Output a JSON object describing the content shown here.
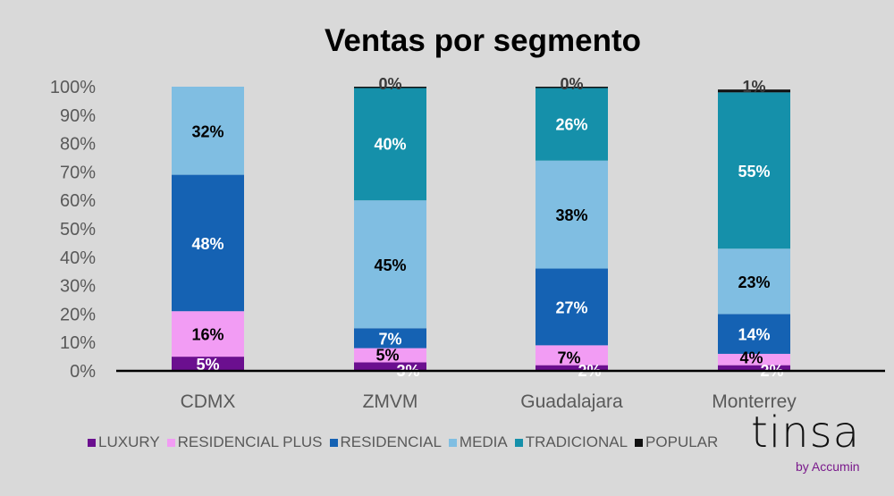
{
  "chart_data": {
    "type": "bar",
    "stacked": true,
    "title": "Ventas por segmento",
    "xlabel": "",
    "ylabel": "",
    "ylim": [
      0,
      100
    ],
    "yticks": [
      "0%",
      "10%",
      "20%",
      "30%",
      "40%",
      "50%",
      "60%",
      "70%",
      "80%",
      "90%",
      "100%"
    ],
    "categories": [
      "CDMX",
      "ZMVM",
      "Guadalajara",
      "Monterrey"
    ],
    "series": [
      {
        "name": "LUXURY",
        "color": "#6b0f8f",
        "label_color": "#ffffff",
        "values": [
          5,
          3,
          2,
          2
        ]
      },
      {
        "name": "RESIDENCIAL PLUS",
        "color": "#f29cf4",
        "label_color": "#000000",
        "values": [
          16,
          5,
          7,
          4
        ]
      },
      {
        "name": "RESIDENCIAL",
        "color": "#1562b3",
        "label_color": "#ffffff",
        "values": [
          48,
          7,
          27,
          14
        ]
      },
      {
        "name": "MEDIA",
        "color": "#80bee2",
        "label_color": "#000000",
        "values": [
          32,
          45,
          38,
          23
        ]
      },
      {
        "name": "TRADICIONAL",
        "color": "#1590aa",
        "label_color": "#ffffff",
        "values": [
          null,
          40,
          26,
          55
        ]
      },
      {
        "name": "POPULAR",
        "color": "#111111",
        "label_color": "#3a3a3a",
        "values": [
          null,
          0,
          0,
          1
        ]
      }
    ],
    "legend_position": "bottom",
    "grid": false
  },
  "logo": {
    "text": "tinsa",
    "sub": "by Accumin"
  }
}
